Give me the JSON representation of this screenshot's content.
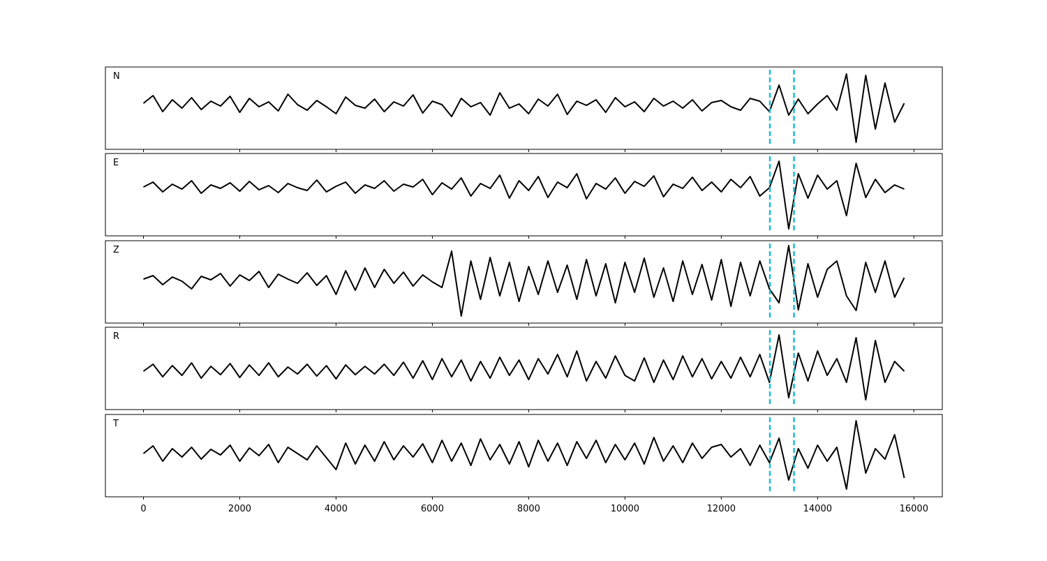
{
  "chart_data": [
    {
      "type": "line",
      "title": "N",
      "color": "#000000",
      "xlim": [
        -790,
        16590
      ],
      "ylim": [
        -59,
        59
      ],
      "xticks": [
        0,
        2000,
        4000,
        6000,
        8000,
        10000,
        12000,
        14000,
        16000
      ],
      "vlines": [
        13010,
        13510
      ],
      "vline_color": "#17becf",
      "x": [
        0,
        200,
        400,
        600,
        800,
        1000,
        1200,
        1400,
        1600,
        1800,
        2000,
        2200,
        2400,
        2600,
        2800,
        3000,
        3200,
        3400,
        3600,
        3800,
        4000,
        4200,
        4400,
        4600,
        4800,
        5000,
        5200,
        5400,
        5600,
        5800,
        6000,
        6200,
        6400,
        6600,
        6800,
        7000,
        7200,
        7400,
        7600,
        7800,
        8000,
        8200,
        8400,
        8600,
        8800,
        9000,
        9200,
        9400,
        9600,
        9800,
        10000,
        10200,
        10400,
        10600,
        10800,
        11000,
        11200,
        11400,
        11600,
        11800,
        12000,
        12200,
        12400,
        12600,
        12800,
        13000,
        13200,
        13400,
        13600,
        13800,
        14000,
        14200,
        14400,
        14600,
        14800,
        15000,
        15200,
        15400,
        15600,
        15800
      ],
      "values": [
        7,
        18,
        -5,
        12,
        0,
        15,
        -2,
        10,
        3,
        17,
        -6,
        14,
        2,
        9,
        -4,
        20,
        5,
        -3,
        11,
        2,
        -8,
        16,
        4,
        0,
        13,
        -5,
        9,
        3,
        19,
        -7,
        10,
        5,
        -12,
        14,
        2,
        8,
        -10,
        22,
        0,
        6,
        -8,
        13,
        3,
        20,
        -9,
        10,
        4,
        12,
        -6,
        15,
        2,
        9,
        -5,
        14,
        3,
        10,
        0,
        12,
        -4,
        8,
        11,
        2,
        -3,
        14,
        10,
        -5,
        33,
        -10,
        13,
        -8,
        6,
        18,
        -3,
        49,
        -49,
        47,
        -30,
        36,
        -20,
        7
      ]
    },
    {
      "type": "line",
      "title": "E",
      "color": "#000000",
      "xlim": [
        -790,
        16590
      ],
      "ylim": [
        -59,
        59
      ],
      "xticks": [
        0,
        2000,
        4000,
        6000,
        8000,
        10000,
        12000,
        14000,
        16000
      ],
      "vlines": [
        13010,
        13510
      ],
      "vline_color": "#17becf",
      "x": [
        0,
        200,
        400,
        600,
        800,
        1000,
        1200,
        1400,
        1600,
        1800,
        2000,
        2200,
        2400,
        2600,
        2800,
        3000,
        3200,
        3400,
        3600,
        3800,
        4000,
        4200,
        4400,
        4600,
        4800,
        5000,
        5200,
        5400,
        5600,
        5800,
        6000,
        6200,
        6400,
        6600,
        6800,
        7000,
        7200,
        7400,
        7600,
        7800,
        8000,
        8200,
        8400,
        8600,
        8800,
        9000,
        9200,
        9400,
        9600,
        9800,
        10000,
        10200,
        10400,
        10600,
        10800,
        11000,
        11200,
        11400,
        11600,
        11800,
        12000,
        12200,
        12400,
        12600,
        12800,
        13000,
        13200,
        13400,
        13600,
        13800,
        14000,
        14200,
        14400,
        14600,
        14800,
        15000,
        15200,
        15400,
        15600,
        15800
      ],
      "values": [
        11,
        18,
        4,
        15,
        8,
        20,
        2,
        14,
        9,
        17,
        5,
        19,
        7,
        13,
        3,
        16,
        10,
        6,
        21,
        4,
        12,
        18,
        2,
        14,
        9,
        20,
        5,
        15,
        11,
        22,
        0,
        17,
        8,
        24,
        -2,
        16,
        9,
        28,
        -5,
        20,
        6,
        26,
        -4,
        18,
        10,
        30,
        -6,
        16,
        8,
        24,
        2,
        19,
        12,
        27,
        -3,
        15,
        9,
        25,
        6,
        18,
        4,
        22,
        10,
        26,
        -2,
        10,
        48,
        -49,
        30,
        -5,
        28,
        8,
        20,
        -30,
        45,
        -4,
        22,
        3,
        14,
        8
      ]
    },
    {
      "type": "line",
      "title": "Z",
      "color": "#000000",
      "xlim": [
        -790,
        16590
      ],
      "ylim": [
        -59,
        59
      ],
      "xticks": [
        0,
        2000,
        4000,
        6000,
        8000,
        10000,
        12000,
        14000,
        16000
      ],
      "vlines": [
        13010,
        13510
      ],
      "vline_color": "#17becf",
      "x": [
        0,
        200,
        400,
        600,
        800,
        1000,
        1200,
        1400,
        1600,
        1800,
        2000,
        2200,
        2400,
        2600,
        2800,
        3000,
        3200,
        3400,
        3600,
        3800,
        4000,
        4200,
        4400,
        4600,
        4800,
        5000,
        5200,
        5400,
        5600,
        5800,
        6000,
        6200,
        6400,
        6600,
        6800,
        7000,
        7200,
        7400,
        7600,
        7800,
        8000,
        8200,
        8400,
        8600,
        8800,
        9000,
        9200,
        9400,
        9600,
        9800,
        10000,
        10200,
        10400,
        10600,
        10800,
        11000,
        11200,
        11400,
        11600,
        11800,
        12000,
        12200,
        12400,
        12600,
        12800,
        13000,
        13200,
        13400,
        13600,
        13800,
        14000,
        14200,
        14400,
        14600,
        14800,
        15000,
        15200,
        15400,
        15600,
        15800
      ],
      "values": [
        4,
        9,
        -4,
        7,
        1,
        -10,
        8,
        3,
        12,
        -6,
        10,
        2,
        15,
        -8,
        11,
        4,
        -2,
        13,
        -5,
        9,
        -18,
        16,
        -12,
        20,
        -8,
        18,
        -2,
        14,
        -6,
        10,
        0,
        -8,
        44,
        -49,
        30,
        -25,
        35,
        -20,
        28,
        -28,
        22,
        -18,
        30,
        -15,
        24,
        -25,
        32,
        -20,
        26,
        -30,
        28,
        -15,
        34,
        -22,
        20,
        -28,
        30,
        -18,
        25,
        -26,
        32,
        -35,
        28,
        -20,
        30,
        -10,
        -30,
        52,
        -40,
        26,
        -22,
        18,
        30,
        -20,
        -41,
        28,
        -15,
        30,
        -22,
        6
      ]
    },
    {
      "type": "line",
      "title": "R",
      "color": "#000000",
      "xlim": [
        -790,
        16590
      ],
      "ylim": [
        -59,
        59
      ],
      "xticks": [
        0,
        2000,
        4000,
        6000,
        8000,
        10000,
        12000,
        14000,
        16000
      ],
      "vlines": [
        13010,
        13510
      ],
      "vline_color": "#17becf",
      "x": [
        0,
        200,
        400,
        600,
        800,
        1000,
        1200,
        1400,
        1600,
        1800,
        2000,
        2200,
        2400,
        2600,
        2800,
        3000,
        3200,
        3400,
        3600,
        3800,
        4000,
        4200,
        4400,
        4600,
        4800,
        5000,
        5200,
        5400,
        5600,
        5800,
        6000,
        6200,
        6400,
        6600,
        6800,
        7000,
        7200,
        7400,
        7600,
        7800,
        8000,
        8200,
        8400,
        8600,
        8800,
        9000,
        9200,
        9400,
        9600,
        9800,
        10000,
        10200,
        10400,
        10600,
        10800,
        11000,
        11200,
        11400,
        11600,
        11800,
        12000,
        12200,
        12400,
        12600,
        12800,
        13000,
        13200,
        13400,
        13600,
        13800,
        14000,
        14200,
        14400,
        14600,
        14800,
        15000,
        15200,
        15400,
        15600,
        15800
      ],
      "values": [
        -4,
        6,
        -12,
        4,
        -10,
        8,
        -14,
        3,
        -9,
        7,
        -13,
        5,
        -10,
        8,
        -12,
        2,
        -8,
        6,
        -11,
        4,
        -15,
        5,
        -9,
        3,
        -8,
        6,
        -10,
        9,
        -14,
        11,
        -16,
        14,
        -12,
        12,
        -18,
        10,
        -14,
        16,
        -10,
        12,
        -16,
        14,
        -8,
        20,
        -12,
        25,
        -18,
        10,
        -14,
        18,
        -10,
        -18,
        15,
        -20,
        12,
        -16,
        18,
        -12,
        14,
        -15,
        10,
        -14,
        16,
        -12,
        20,
        -20,
        48,
        -42,
        22,
        -18,
        25,
        -10,
        14,
        -20,
        44,
        -45,
        40,
        -20,
        10,
        -4
      ]
    },
    {
      "type": "line",
      "title": "T",
      "color": "#000000",
      "xlim": [
        -790,
        16590
      ],
      "ylim": [
        -59,
        59
      ],
      "xticks": [
        0,
        2000,
        4000,
        6000,
        8000,
        10000,
        12000,
        14000,
        16000
      ],
      "vlines": [
        13010,
        13510
      ],
      "vline_color": "#17becf",
      "x": [
        0,
        200,
        400,
        600,
        800,
        1000,
        1200,
        1400,
        1600,
        1800,
        2000,
        2200,
        2400,
        2600,
        2800,
        3000,
        3200,
        3400,
        3600,
        3800,
        4000,
        4200,
        4400,
        4600,
        4800,
        5000,
        5200,
        5400,
        5600,
        5800,
        6000,
        6200,
        6400,
        6600,
        6800,
        7000,
        7200,
        7400,
        7600,
        7800,
        8000,
        8200,
        8400,
        8600,
        8800,
        9000,
        9200,
        9400,
        9600,
        9800,
        10000,
        10200,
        10400,
        10600,
        10800,
        11000,
        11200,
        11400,
        11600,
        11800,
        12000,
        12200,
        12400,
        12600,
        12800,
        13000,
        13200,
        13400,
        13600,
        13800,
        14000,
        14200,
        14400,
        14600,
        14800,
        15000,
        15200,
        15400,
        15600,
        15800
      ],
      "values": [
        3,
        14,
        -8,
        10,
        -2,
        12,
        -5,
        9,
        1,
        15,
        -8,
        11,
        0,
        16,
        -10,
        12,
        3,
        -6,
        14,
        -3,
        -20,
        18,
        -12,
        15,
        -8,
        20,
        -6,
        14,
        -2,
        17,
        -10,
        22,
        -8,
        18,
        -14,
        24,
        -6,
        16,
        -12,
        20,
        -16,
        22,
        -8,
        18,
        -14,
        20,
        -4,
        22,
        -10,
        16,
        -6,
        18,
        -12,
        26,
        -8,
        14,
        -10,
        18,
        -4,
        12,
        16,
        -2,
        10,
        -14,
        15,
        -10,
        25,
        -35,
        10,
        -18,
        15,
        -8,
        12,
        -48,
        50,
        -25,
        10,
        -5,
        30,
        -32
      ]
    }
  ]
}
